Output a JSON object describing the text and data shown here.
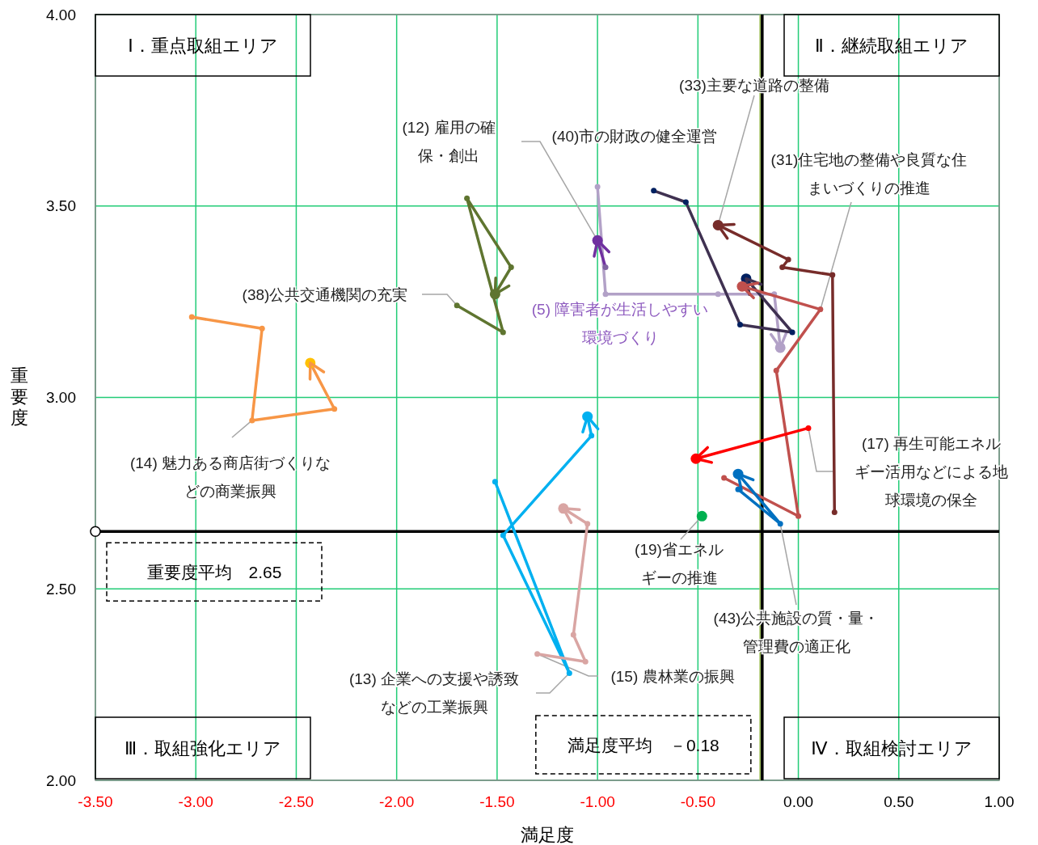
{
  "chart_data": {
    "type": "line",
    "xlabel": "満足度",
    "ylabel": "重要度",
    "xlim": [
      -3.5,
      1.0
    ],
    "ylim": [
      2.0,
      4.0
    ],
    "xticks": [
      {
        "value": -3.5,
        "label": "-3.50"
      },
      {
        "value": -3.0,
        "label": "-3.00"
      },
      {
        "value": -2.5,
        "label": "-2.50"
      },
      {
        "value": -2.0,
        "label": "-2.00"
      },
      {
        "value": -1.5,
        "label": "-1.50"
      },
      {
        "value": -1.0,
        "label": "-1.00"
      },
      {
        "value": -0.5,
        "label": "-0.50"
      },
      {
        "value": 0,
        "label": "0.00"
      },
      {
        "value": 0.5,
        "label": "0.50"
      },
      {
        "value": 1.0,
        "label": "1.00"
      }
    ],
    "yticks": [
      {
        "value": 2.0,
        "label": "2.00"
      },
      {
        "value": 2.5,
        "label": "2.50"
      },
      {
        "value": 3.0,
        "label": "3.00"
      },
      {
        "value": 3.5,
        "label": "3.50"
      },
      {
        "value": 4.0,
        "label": "4.00"
      }
    ],
    "grid": true,
    "marker": "circle",
    "line_style": "solid",
    "series": [
      {
        "color": "#f79646",
        "colors": [
          "#f79646",
          "#f79646",
          "#f79646",
          "#f79646",
          "#ffc000"
        ],
        "x": [
          -3.02,
          -2.67,
          -2.72,
          -2.31,
          -2.43
        ],
        "values": [
          3.21,
          3.18,
          2.94,
          2.97,
          3.09
        ]
      },
      {
        "color": "#5f7530",
        "x": [
          -1.7,
          -1.47,
          -1.65,
          -1.43,
          -1.51
        ],
        "values": [
          3.24,
          3.17,
          3.52,
          3.34,
          3.27
        ]
      },
      {
        "color": "#b2a1c7",
        "x": [
          -1.0,
          -0.96,
          -0.4,
          -0.12,
          -0.09
        ],
        "values": [
          3.55,
          3.27,
          3.27,
          3.27,
          3.13
        ]
      },
      {
        "color": "#7030a0",
        "colors": [
          "#8064a2",
          "#7030a0"
        ],
        "x": [
          -0.96,
          -1.0
        ],
        "values": [
          3.34,
          3.41
        ]
      },
      {
        "color": "#3f3151",
        "colors": [
          "#002060",
          "#002060",
          "#002060",
          "#002060",
          "#002060"
        ],
        "x": [
          -0.72,
          -0.56,
          -0.29,
          -0.03,
          -0.26
        ],
        "values": [
          3.54,
          3.51,
          3.19,
          3.17,
          3.31
        ]
      },
      {
        "color": "#772c2a",
        "x": [
          0.18,
          0.17,
          -0.08,
          -0.05,
          -0.4
        ],
        "values": [
          2.7,
          3.32,
          3.34,
          3.36,
          3.45
        ]
      },
      {
        "color": "#c0504d",
        "x": [
          -0.37,
          0.0,
          -0.11,
          0.11,
          -0.28
        ],
        "values": [
          2.79,
          2.69,
          3.07,
          3.23,
          3.29
        ]
      },
      {
        "color": "#ff0000",
        "x": [
          0.05,
          -0.51
        ],
        "values": [
          2.92,
          2.84
        ]
      },
      {
        "color": "#0070c0",
        "x": [
          -0.3,
          -0.09,
          -0.3
        ],
        "values": [
          2.76,
          2.67,
          2.8
        ]
      },
      {
        "color": "#00b050",
        "x": [
          -0.48
        ],
        "values": [
          2.69
        ]
      },
      {
        "color": "#00b0f0",
        "x": [
          -1.51,
          -1.14,
          -1.47,
          -1.03,
          -1.05
        ],
        "values": [
          2.78,
          2.28,
          2.64,
          2.9,
          2.95
        ]
      },
      {
        "color": "#d9a5a3",
        "x": [
          -1.3,
          -1.06,
          -1.12,
          -1.05,
          -1.17
        ],
        "values": [
          2.33,
          2.31,
          2.38,
          2.67,
          2.71
        ]
      }
    ],
    "ref_lines": [
      {
        "axis": "x",
        "value": -0.19,
        "color": "#9bbb59"
      },
      {
        "axis": "x",
        "value": -0.18,
        "label": "満足度平均　－0.18",
        "color": "#000000"
      },
      {
        "axis": "y",
        "value": 2.65,
        "label": "重要度平均　2.65",
        "color": "#000000"
      }
    ],
    "annotations": [
      {
        "text": "(33)主要な道路の整備",
        "x": -0.4,
        "y": 3.45
      },
      "(12) 雇用の確保・創出",
      {
        "text": "(40)市の財政の健全運営",
        "x": -1.0,
        "y": 3.41
      },
      {
        "text": "(31)住宅地の整備や良質な住まいづくりの推進",
        "x": 0.11,
        "y": 3.23
      },
      {
        "text": "(38)公共交通機関の充実",
        "x": -1.7,
        "y": 3.24
      },
      "(5) 障害者が生活しやすい環境づくり",
      {
        "text": "(14) 魅力ある商店街づくりなどの商業振興",
        "x": -2.72,
        "y": 2.94
      },
      {
        "text": "(17) 再生可能エネルギー活用などによる地球環境の保全",
        "x": 0.05,
        "y": 2.92
      },
      {
        "text": "(19)省エネルギーの推進",
        "x": -0.48,
        "y": 2.69
      },
      {
        "text": "(43)公共施設の質・量・管理費の適正化",
        "x": -0.09,
        "y": 2.67
      },
      {
        "text": "(13) 企業への支援や誘致などの工業振興",
        "x": -1.14,
        "y": 2.28
      },
      {
        "text": "(15) 農林業の振興",
        "x": -1.3,
        "y": 2.33
      },
      "Ⅰ．重点取組エリア",
      "Ⅱ．継続取組エリア",
      "Ⅲ．取組強化エリア",
      "Ⅳ．取組検討エリア"
    ]
  }
}
